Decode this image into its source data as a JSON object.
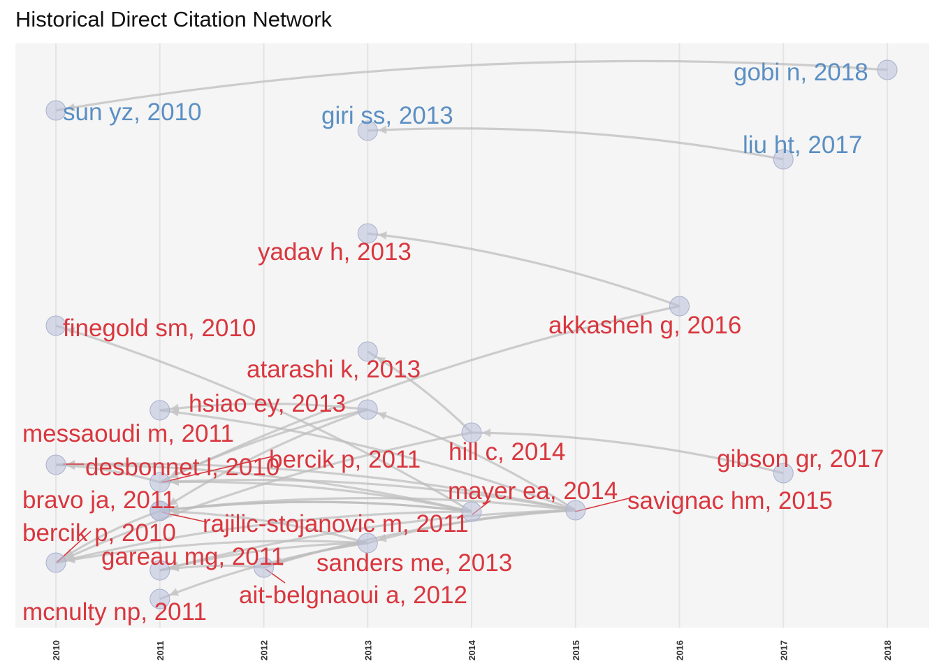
{
  "title": "Historical Direct Citation Network",
  "colors": {
    "cluster_blue": "#5b8fc3",
    "cluster_red": "#d9363e",
    "node_fill": "#b8bfd8",
    "edge": "#bdbdbd",
    "panel_bg": "#f5f5f5",
    "grid": "#e4e4e4"
  },
  "chart_data": {
    "type": "network",
    "x_axis": {
      "ticks": [
        2010,
        2011,
        2012,
        2013,
        2014,
        2015,
        2016,
        2017,
        2018
      ],
      "label_rotation": "vertical",
      "range": [
        2010,
        2018
      ]
    },
    "grid": "vertical lines at each year",
    "legend": "none",
    "nodes": [
      {
        "id": "gobi",
        "label": "gobi n, 2018",
        "year": 2018,
        "cluster": "blue"
      },
      {
        "id": "sun",
        "label": "sun yz, 2010",
        "year": 2010,
        "cluster": "blue"
      },
      {
        "id": "giri",
        "label": "giri ss, 2013",
        "year": 2013,
        "cluster": "blue"
      },
      {
        "id": "liu",
        "label": "liu ht, 2017",
        "year": 2017,
        "cluster": "blue"
      },
      {
        "id": "yadav",
        "label": "yadav h, 2013",
        "year": 2013,
        "cluster": "red"
      },
      {
        "id": "akkasheh",
        "label": "akkasheh g, 2016",
        "year": 2016,
        "cluster": "red"
      },
      {
        "id": "finegold",
        "label": "finegold sm, 2010",
        "year": 2010,
        "cluster": "red"
      },
      {
        "id": "atarashi",
        "label": "atarashi k, 2013",
        "year": 2013,
        "cluster": "red"
      },
      {
        "id": "hsiao",
        "label": "hsiao ey, 2013",
        "year": 2013,
        "cluster": "red"
      },
      {
        "id": "messaoudi",
        "label": "messaoudi m, 2011",
        "year": 2011,
        "cluster": "red"
      },
      {
        "id": "hill",
        "label": "hill c, 2014",
        "year": 2014,
        "cluster": "red"
      },
      {
        "id": "desbonnet",
        "label": "desbonnet l, 2010",
        "year": 2010,
        "cluster": "red"
      },
      {
        "id": "bercik2011",
        "label": "bercik p, 2011",
        "year": 2011,
        "cluster": "red"
      },
      {
        "id": "gibson",
        "label": "gibson gr, 2017",
        "year": 2017,
        "cluster": "red"
      },
      {
        "id": "mayer",
        "label": "mayer ea, 2014",
        "year": 2014,
        "cluster": "red"
      },
      {
        "id": "bravo",
        "label": "bravo ja, 2011",
        "year": 2011,
        "cluster": "red"
      },
      {
        "id": "savignac",
        "label": "savignac hm, 2015",
        "year": 2015,
        "cluster": "red"
      },
      {
        "id": "rajilic",
        "label": "rajilic-stojanovic m, 2011",
        "year": 2011,
        "cluster": "red"
      },
      {
        "id": "bercik2010",
        "label": "bercik p, 2010",
        "year": 2010,
        "cluster": "red"
      },
      {
        "id": "gareau",
        "label": "gareau mg, 2011",
        "year": 2011,
        "cluster": "red"
      },
      {
        "id": "sanders",
        "label": "sanders me, 2013",
        "year": 2013,
        "cluster": "red"
      },
      {
        "id": "aitbelgnaoui",
        "label": "ait-belgnaoui a, 2012",
        "year": 2012,
        "cluster": "red"
      },
      {
        "id": "mcnulty",
        "label": "mcnulty np, 2011",
        "year": 2011,
        "cluster": "red"
      }
    ],
    "edges": [
      [
        "gobi",
        "sun"
      ],
      [
        "liu",
        "giri"
      ],
      [
        "akkasheh",
        "yadav"
      ],
      [
        "akkasheh",
        "bercik2011"
      ],
      [
        "gibson",
        "hill"
      ],
      [
        "hill",
        "atarashi"
      ],
      [
        "hill",
        "bercik2010"
      ],
      [
        "mayer",
        "finegold"
      ],
      [
        "hsiao",
        "messaoudi"
      ],
      [
        "hsiao",
        "bercik2011"
      ],
      [
        "savignac",
        "desbonnet"
      ],
      [
        "savignac",
        "bercik2011"
      ],
      [
        "savignac",
        "bravo"
      ],
      [
        "savignac",
        "messaoudi"
      ],
      [
        "savignac",
        "hsiao"
      ],
      [
        "savignac",
        "gareau"
      ],
      [
        "savignac",
        "sanders"
      ],
      [
        "savignac",
        "aitbelgnaoui"
      ],
      [
        "mayer",
        "bercik2011"
      ],
      [
        "mayer",
        "rajilic"
      ],
      [
        "mayer",
        "desbonnet"
      ],
      [
        "mayer",
        "bercik2010"
      ],
      [
        "sanders",
        "gareau"
      ],
      [
        "sanders",
        "bercik2010"
      ],
      [
        "sanders",
        "aitbelgnaoui"
      ],
      [
        "sanders",
        "rajilic"
      ],
      [
        "sanders",
        "mcnulty"
      ],
      [
        "aitbelgnaoui",
        "gareau"
      ],
      [
        "bravo",
        "bercik2010"
      ],
      [
        "bercik2011",
        "desbonnet"
      ],
      [
        "hsiao",
        "bravo"
      ],
      [
        "mayer",
        "bravo"
      ]
    ]
  }
}
